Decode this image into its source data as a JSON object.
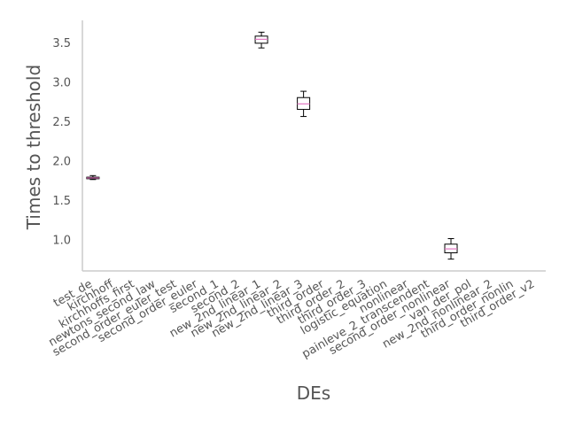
{
  "chart_data": {
    "type": "box",
    "title": "",
    "xlabel": "DEs",
    "ylabel": "Times to threshold",
    "ylim": [
      0.6,
      3.78
    ],
    "yticks": [
      1.0,
      1.5,
      2.0,
      2.5,
      3.0,
      3.5
    ],
    "ytick_labels": [
      "1.0",
      "1.5",
      "2.0",
      "2.5",
      "3.0",
      "3.5"
    ],
    "grid": false,
    "categories": [
      "test_de",
      "kirchhoff",
      "kirchhoffs_first",
      "newtons_second_law",
      "second_order_euler_test",
      "second_order_euler",
      "second_1",
      "second_2",
      "new_2nd_linear_1",
      "new_2nd_linear_2",
      "new_2nd_linear_3",
      "third_order",
      "third_order_2",
      "third_order_3",
      "logistic_equation",
      "nonlinear",
      "painleve_2_transcendent",
      "second_order_nonlinear",
      "van_der_pol",
      "new_2nd_nonlinear_2",
      "third_order_nonlin",
      "third_order_v2"
    ],
    "boxes": [
      {
        "category": "test_de",
        "whisker_low": 1.76,
        "q1": 1.77,
        "median": 1.78,
        "q3": 1.79,
        "whisker_high": 1.81
      },
      {
        "category": "new_2nd_linear_1",
        "whisker_low": 3.43,
        "q1": 3.49,
        "median": 3.54,
        "q3": 3.58,
        "whisker_high": 3.63
      },
      {
        "category": "new_2nd_linear_3",
        "whisker_low": 2.56,
        "q1": 2.65,
        "median": 2.72,
        "q3": 2.8,
        "whisker_high": 2.88
      },
      {
        "category": "second_order_nonlinear",
        "whisker_low": 0.75,
        "q1": 0.83,
        "median": 0.88,
        "q3": 0.94,
        "whisker_high": 1.01
      }
    ],
    "colors": {
      "box": "#000000",
      "median": "#e377c2",
      "axis": "#cccccc",
      "text": "#555555"
    }
  }
}
